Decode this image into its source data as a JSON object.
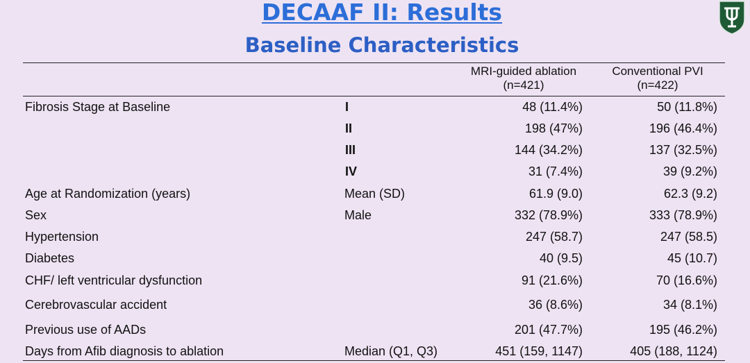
{
  "header": {
    "title": "DECAAF II: Results",
    "subtitle": "Baseline Characteristics"
  },
  "table": {
    "columns": [
      {
        "line1": "MRI-guided ablation",
        "line2": "(n=421)"
      },
      {
        "line1": "Conventional PVI",
        "line2": "(n=422)"
      }
    ],
    "rows": [
      {
        "label": "Fibrosis Stage at Baseline",
        "sub": "I",
        "mri": "48 (11.4%)",
        "pvi": "50 (11.8%)"
      },
      {
        "label": "",
        "sub": "II",
        "mri": "198 (47%)",
        "pvi": "196 (46.4%)"
      },
      {
        "label": "",
        "sub": "III",
        "mri": "144 (34.2%)",
        "pvi": "137 (32.5%)"
      },
      {
        "label": "",
        "sub": "IV",
        "mri": "31 (7.4%)",
        "pvi": "39 (9.2%)"
      },
      {
        "label": "Age at Randomization (years)",
        "sub": "Mean (SD)",
        "mri": "61.9 (9.0)",
        "pvi": "62.3 (9.2)"
      },
      {
        "label": "Sex",
        "sub": "Male",
        "mri": "332 (78.9%)",
        "pvi": "333 (78.9%)"
      },
      {
        "label": "Hypertension",
        "sub": "",
        "mri": "247 (58.7)",
        "pvi": "247 (58.5)"
      },
      {
        "label": "Diabetes",
        "sub": "",
        "mri": "40 (9.5)",
        "pvi": "45 (10.7)"
      },
      {
        "label": "CHF/ left ventricular dysfunction",
        "sub": "",
        "mri": "91 (21.6%)",
        "pvi": "70 (16.6%)"
      },
      {
        "label": "Cerebrovascular accident",
        "sub": "",
        "mri": "36 (8.6%)",
        "pvi": "34 (8.1%)"
      },
      {
        "label": "Previous use of AADs",
        "sub": "",
        "mri": "201 (47.7%)",
        "pvi": "195 (46.2%)"
      },
      {
        "label": "Days from Afib diagnosis to ablation",
        "sub": "Median (Q1, Q3)",
        "mri": "451 (159, 1147)",
        "pvi": "405 (188, 1124)"
      }
    ]
  },
  "colors": {
    "background": "#eee3f3",
    "title": "#2c6ed8",
    "logo_green": "#1f5a36"
  },
  "icons": [
    "tulane-shield-logo"
  ]
}
